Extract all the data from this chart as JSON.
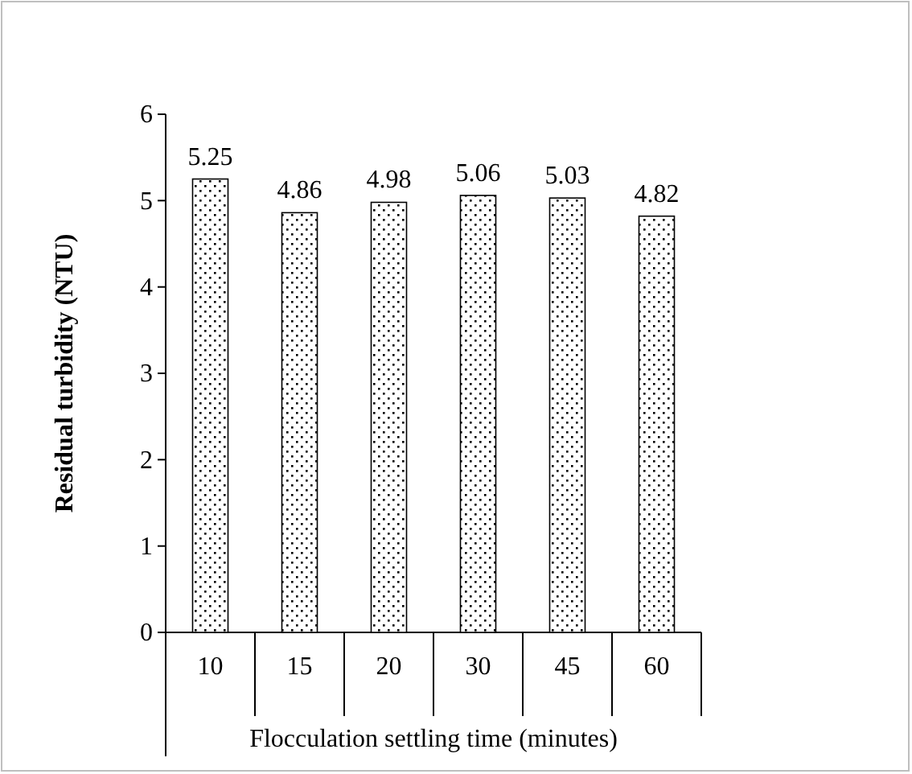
{
  "chart_data": {
    "type": "bar",
    "xlabel": "Flocculation settling time (minutes)",
    "ylabel": "Residual turbidity (NTU)",
    "categories": [
      "10",
      "15",
      "20",
      "30",
      "45",
      "60"
    ],
    "values": [
      5.25,
      4.86,
      4.98,
      5.06,
      5.03,
      4.82
    ],
    "color": "#000000",
    "ylim": [
      0,
      6
    ],
    "yticks": [
      0,
      1,
      2,
      3,
      4,
      5,
      6
    ],
    "data_labels": true,
    "grid": false
  }
}
